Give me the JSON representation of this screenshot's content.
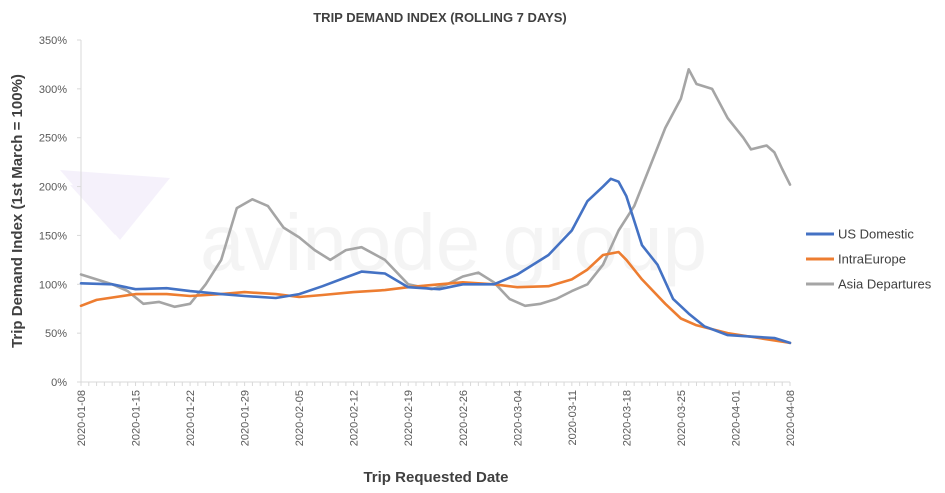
{
  "chart_data": {
    "type": "line",
    "title": "TRIP DEMAND INDEX (ROLLING 7 DAYS)",
    "xlabel": "Trip Requested Date",
    "ylabel": "Trip Demand Index (1st March = 100%)",
    "watermark": "avinode group",
    "x_start": "2020-01-08",
    "x_end": "2020-04-08",
    "x_ticks": [
      "2020-01-08",
      "2020-01-15",
      "2020-01-22",
      "2020-01-29",
      "2020-02-05",
      "2020-02-12",
      "2020-02-19",
      "2020-02-26",
      "2020-03-04",
      "2020-03-11",
      "2020-03-18",
      "2020-03-25",
      "2020-04-01",
      "2020-04-08"
    ],
    "y_ticks": [
      0,
      50,
      100,
      150,
      200,
      250,
      300,
      350
    ],
    "y_tick_labels": [
      "0%",
      "50%",
      "100%",
      "150%",
      "200%",
      "250%",
      "300%",
      "350%"
    ],
    "ylim": [
      0,
      350
    ],
    "y_unit": "%",
    "grid": false,
    "legend_position": "right",
    "series": [
      {
        "name": "US Domestic",
        "color": "#4472C4",
        "points": [
          [
            "2020-01-08",
            101
          ],
          [
            "2020-01-12",
            100
          ],
          [
            "2020-01-15",
            95
          ],
          [
            "2020-01-19",
            96
          ],
          [
            "2020-01-22",
            93
          ],
          [
            "2020-01-26",
            90
          ],
          [
            "2020-01-29",
            88
          ],
          [
            "2020-02-02",
            86
          ],
          [
            "2020-02-05",
            90
          ],
          [
            "2020-02-08",
            98
          ],
          [
            "2020-02-11",
            107
          ],
          [
            "2020-02-13",
            113
          ],
          [
            "2020-02-16",
            111
          ],
          [
            "2020-02-19",
            97
          ],
          [
            "2020-02-23",
            95
          ],
          [
            "2020-02-26",
            100
          ],
          [
            "2020-03-01",
            100
          ],
          [
            "2020-03-04",
            110
          ],
          [
            "2020-03-08",
            130
          ],
          [
            "2020-03-11",
            155
          ],
          [
            "2020-03-13",
            185
          ],
          [
            "2020-03-15",
            200
          ],
          [
            "2020-03-16",
            208
          ],
          [
            "2020-03-17",
            205
          ],
          [
            "2020-03-18",
            190
          ],
          [
            "2020-03-20",
            140
          ],
          [
            "2020-03-22",
            120
          ],
          [
            "2020-03-24",
            85
          ],
          [
            "2020-03-26",
            70
          ],
          [
            "2020-03-28",
            57
          ],
          [
            "2020-03-31",
            48
          ],
          [
            "2020-04-04",
            46
          ],
          [
            "2020-04-06",
            45
          ],
          [
            "2020-04-08",
            40
          ]
        ]
      },
      {
        "name": "IntraEurope",
        "color": "#ED7D31",
        "points": [
          [
            "2020-01-08",
            78
          ],
          [
            "2020-01-10",
            84
          ],
          [
            "2020-01-15",
            90
          ],
          [
            "2020-01-19",
            90
          ],
          [
            "2020-01-22",
            88
          ],
          [
            "2020-01-26",
            90
          ],
          [
            "2020-01-29",
            92
          ],
          [
            "2020-02-02",
            90
          ],
          [
            "2020-02-05",
            87
          ],
          [
            "2020-02-08",
            89
          ],
          [
            "2020-02-12",
            92
          ],
          [
            "2020-02-16",
            94
          ],
          [
            "2020-02-19",
            97
          ],
          [
            "2020-02-23",
            100
          ],
          [
            "2020-02-26",
            102
          ],
          [
            "2020-03-01",
            100
          ],
          [
            "2020-03-04",
            97
          ],
          [
            "2020-03-08",
            98
          ],
          [
            "2020-03-11",
            105
          ],
          [
            "2020-03-13",
            115
          ],
          [
            "2020-03-15",
            130
          ],
          [
            "2020-03-17",
            133
          ],
          [
            "2020-03-18",
            125
          ],
          [
            "2020-03-20",
            105
          ],
          [
            "2020-03-23",
            80
          ],
          [
            "2020-03-25",
            65
          ],
          [
            "2020-03-27",
            58
          ],
          [
            "2020-03-31",
            50
          ],
          [
            "2020-04-04",
            45
          ],
          [
            "2020-04-08",
            40
          ]
        ]
      },
      {
        "name": "Asia Departures",
        "color": "#A5A5A5",
        "points": [
          [
            "2020-01-08",
            110
          ],
          [
            "2020-01-10",
            105
          ],
          [
            "2020-01-12",
            100
          ],
          [
            "2020-01-14",
            93
          ],
          [
            "2020-01-16",
            80
          ],
          [
            "2020-01-18",
            82
          ],
          [
            "2020-01-20",
            77
          ],
          [
            "2020-01-22",
            80
          ],
          [
            "2020-01-24",
            100
          ],
          [
            "2020-01-26",
            125
          ],
          [
            "2020-01-28",
            178
          ],
          [
            "2020-01-30",
            187
          ],
          [
            "2020-02-01",
            180
          ],
          [
            "2020-02-03",
            158
          ],
          [
            "2020-02-05",
            148
          ],
          [
            "2020-02-07",
            135
          ],
          [
            "2020-02-09",
            125
          ],
          [
            "2020-02-11",
            135
          ],
          [
            "2020-02-13",
            138
          ],
          [
            "2020-02-16",
            125
          ],
          [
            "2020-02-19",
            100
          ],
          [
            "2020-02-22",
            95
          ],
          [
            "2020-02-24",
            100
          ],
          [
            "2020-02-26",
            108
          ],
          [
            "2020-02-28",
            112
          ],
          [
            "2020-03-01",
            102
          ],
          [
            "2020-03-03",
            85
          ],
          [
            "2020-03-05",
            78
          ],
          [
            "2020-03-07",
            80
          ],
          [
            "2020-03-09",
            85
          ],
          [
            "2020-03-11",
            93
          ],
          [
            "2020-03-13",
            100
          ],
          [
            "2020-03-15",
            120
          ],
          [
            "2020-03-17",
            155
          ],
          [
            "2020-03-19",
            180
          ],
          [
            "2020-03-21",
            220
          ],
          [
            "2020-03-23",
            260
          ],
          [
            "2020-03-25",
            290
          ],
          [
            "2020-03-26",
            320
          ],
          [
            "2020-03-27",
            305
          ],
          [
            "2020-03-29",
            300
          ],
          [
            "2020-03-31",
            270
          ],
          [
            "2020-04-02",
            250
          ],
          [
            "2020-04-03",
            238
          ],
          [
            "2020-04-05",
            242
          ],
          [
            "2020-04-06",
            235
          ],
          [
            "2020-04-07",
            218
          ],
          [
            "2020-04-08",
            202
          ]
        ]
      }
    ]
  }
}
